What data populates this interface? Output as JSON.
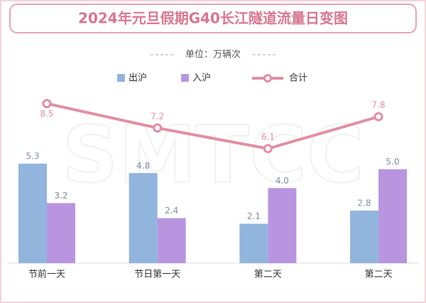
{
  "chart_data": {
    "type": "bar-line",
    "title": "2024年元旦假期G40长江隧道流量日变图",
    "subtitle": "单位：万辆次",
    "watermark": "SMTCC",
    "categories": [
      "节前一天",
      "节日第一天",
      "第二天",
      "第二天"
    ],
    "ylim": [
      0,
      10
    ],
    "series": [
      {
        "name": "出沪",
        "type": "bar",
        "color": "#92b5de",
        "values": [
          5.3,
          4.8,
          2.1,
          2.8
        ],
        "value_labels": [
          "5.3",
          "4.8",
          "2.1",
          "2.8"
        ]
      },
      {
        "name": "入沪",
        "type": "bar",
        "color": "#b995e0",
        "values": [
          3.2,
          2.4,
          4.0,
          5.0
        ],
        "value_labels": [
          "3.2",
          "2.4",
          "4.0",
          "5.0"
        ]
      },
      {
        "name": "合计",
        "type": "line",
        "color": "#e28ea3",
        "values": [
          8.5,
          7.2,
          6.1,
          7.8
        ]
      }
    ]
  }
}
